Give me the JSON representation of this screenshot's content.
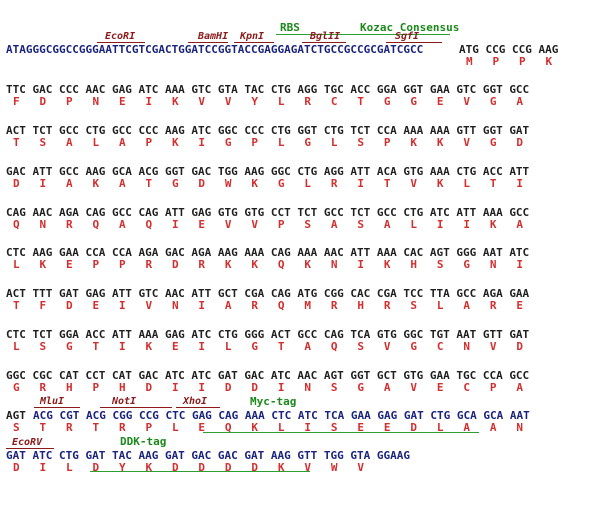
{
  "header": {
    "rbs": "RBS",
    "kozac": "Kozac Consensus",
    "sites": {
      "ecori": "EcoRI",
      "bamhi": "BamHI",
      "kpni": "KpnI",
      "bglii": "BglII",
      "sgfi": "SgfI"
    },
    "top_dna_blue": "ATAGGGCGGCCGGGAATTCGTCGACTGGATCCGGTACCGAGGAGATCTGCCGCCGCGATCGCC",
    "top_dna_codons": "ATG CCG CCG AAG",
    "top_aa": "M   P   P   K"
  },
  "rows": [
    {
      "dna": "TTC GAC CCC AAC GAG ATC AAA GTC GTA TAC CTG AGG TGC ACC GGA GGT GAA GTC GGT GCC",
      "aa": "F   D   P   N   E   I   K   V   V   Y   L   R   C   T   G   G   E   V   G   A"
    },
    {
      "dna": "ACT TCT GCC CTG GCC CCC AAG ATC GGC CCC CTG GGT CTG TCT CCA AAA AAA GTT GGT GAT",
      "aa": "T   S   A   L   A   P   K   I   G   P   L   G   L   S   P   K   K   V   G   D"
    },
    {
      "dna": "GAC ATT GCC AAG GCA ACG GGT GAC TGG AAG GGC CTG AGG ATT ACA GTG AAA CTG ACC ATT",
      "aa": "D   I   A   K   A   T   G   D   W   K   G   L   R   I   T   V   K   L   T   I"
    },
    {
      "dna": "CAG AAC AGA CAG GCC CAG ATT GAG GTG GTG CCT TCT GCC TCT GCC CTG ATC ATT AAA GCC",
      "aa": "Q   N   R   Q   A   Q   I   E   V   V   P   S   A   S   A   L   I   I   K   A"
    },
    {
      "dna": "CTC AAG GAA CCA CCA AGA GAC AGA AAG AAA CAG AAA AAC ATT AAA CAC AGT GGG AAT ATC",
      "aa": "L   K   E   P   P   R   D   R   K   K   Q   K   N   I   K   H   S   G   N   I"
    },
    {
      "dna": "ACT TTT GAT GAG ATT GTC AAC ATT GCT CGA CAG ATG CGG CAC CGA TCC TTA GCC AGA GAA",
      "aa": "T   F   D   E   I   V   N   I   A   R   Q   M   R   H   R   S   L   A   R   E"
    },
    {
      "dna": "CTC TCT GGA ACC ATT AAA GAG ATC CTG GGG ACT GCC CAG TCA GTG GGC TGT AAT GTT GAT",
      "aa": "L   S   G   T   I   K   E   I   L   G   T   A   Q   S   V   G   C   N   V   D"
    },
    {
      "dna": "GGC CGC CAT CCT CAT GAC ATC ATC GAT GAC ATC AAC AGT GGT GCT GTG GAA TGC CCA GCC",
      "aa": "G   R   H   P   H   D   I   I   D   D   I   N   S   G   A   V   E   C   P   A"
    }
  ],
  "row10": {
    "sites": {
      "mlui": "MluI",
      "noti": "NotI",
      "xhoi": "XhoI"
    },
    "myc_tag": "Myc-tag",
    "dna_start": "AGT",
    "dna_blue": "ACG CGT ACG CGG CCG CTC GAG CAG AAA CTC ATC TCA GAA GAG GAT CTG GCA GCA AAT",
    "aa": "S   T   R   T   R   P   L   E   Q   K   L   I   S   E   E   D   L   A   A   N"
  },
  "row11": {
    "sites": {
      "ecorv": "EcoRV"
    },
    "ddk_tag": "DDK-tag",
    "dna_blue": "GAT ATC CTG GAT TAC AAG GAT GAC GAC GAT AAG GTT TGG GTA GGAAG",
    "aa": "D   I   L   D   Y   K   D   D   D   D   K   V   W   V"
  }
}
